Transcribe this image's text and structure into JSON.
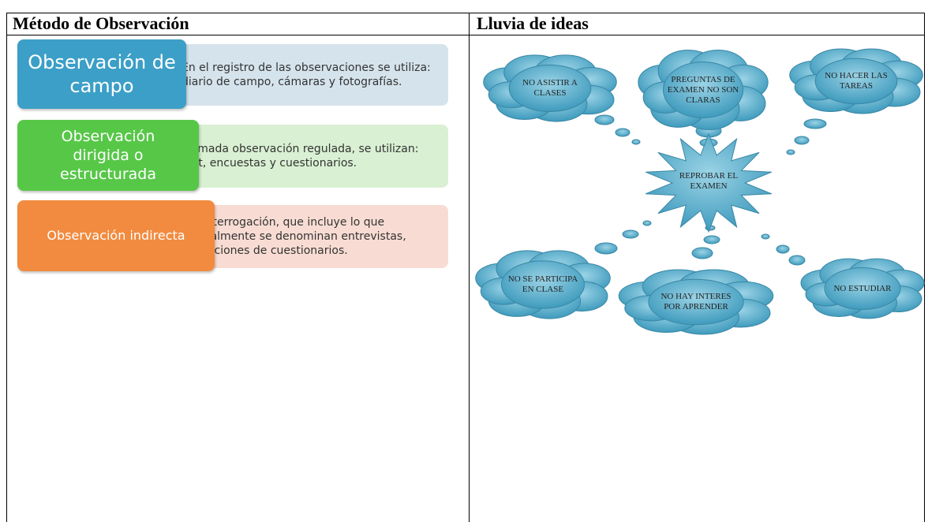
{
  "table": {
    "headers": [
      "Método de Observación",
      "Lluvia de ideas"
    ]
  },
  "methods": [
    {
      "label": "Observación de campo",
      "text": "En el registro de las observaciones se utiliza: diario de campo, cámaras y fotografías."
    },
    {
      "label": "Observación dirigida o estructurada",
      "text": "Llamada observación regulada, se utilizan: test, encuestas y cuestionarios."
    },
    {
      "label": "Observación indirecta",
      "text": "Por interrogación, que incluye lo que normalmente se denominan entrevistas, aplicaciones de cuestionarios."
    }
  ],
  "diagram": {
    "center": "REPROBAR EL EXAMEN",
    "clouds": [
      "NO ASISTIR A CLASES",
      "PREGUNTAS DE EXAMEN NO SON CLARAS",
      "NO HACER LAS TAREAS",
      "NO SE PARTICIPA EN CLASE",
      "NO HAY INTERES POR APRENDER",
      "NO ESTUDIAR"
    ]
  }
}
